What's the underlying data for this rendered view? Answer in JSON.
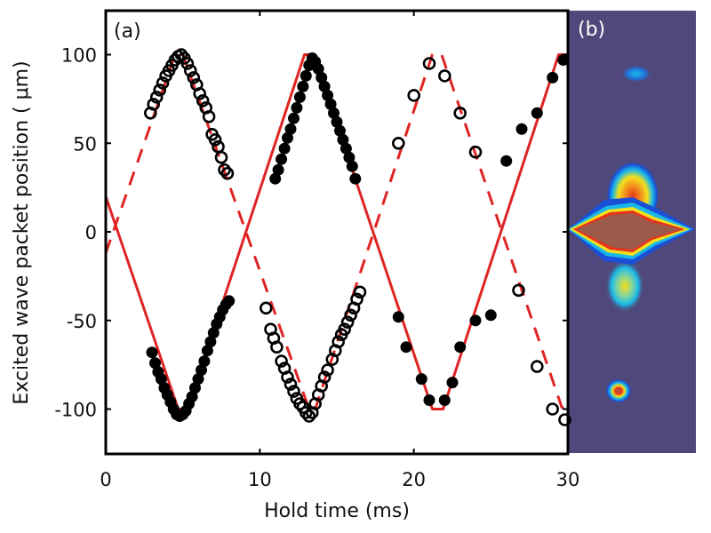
{
  "chart_data": [
    {
      "panel": "(a)",
      "type": "line",
      "xlabel": "Hold time (ms)",
      "ylabel": "Excited wave packet position (   μm)",
      "xlim": [
        0,
        30
      ],
      "ylim": [
        -126,
        125
      ],
      "xticks": [
        0,
        10,
        20,
        30
      ],
      "xtick_labels": [
        "0",
        "10",
        "20",
        "30"
      ],
      "yticks": [
        100,
        50,
        0,
        -50,
        -100
      ],
      "ytick_labels": [
        "100",
        "50",
        "0",
        "-50",
        "-100"
      ],
      "grid": false,
      "colors": {
        "fit": "#e02424",
        "data": "#000000",
        "axes": "#000000"
      },
      "series": [
        {
          "name": "fit-solid",
          "style": "solid",
          "x": [
            0,
            4.7,
            5.3,
            12.9,
            13.5,
            21.2,
            21.9,
            29.4,
            30
          ],
          "y": [
            20,
            -100,
            -100,
            100,
            100,
            -100,
            -100,
            100,
            100
          ]
        },
        {
          "name": "fit-dashed",
          "style": "dashed",
          "x": [
            0,
            4.5,
            5.0,
            13.2,
            13.6,
            21.2,
            21.8,
            29.6,
            30
          ],
          "y": [
            -12,
            100,
            100,
            -100,
            -100,
            100,
            100,
            -99,
            -100
          ]
        },
        {
          "name": "data-filled",
          "marker": "filled-circle",
          "x": [
            3.0,
            3.2,
            3.4,
            3.6,
            3.8,
            4.0,
            4.2,
            4.4,
            4.6,
            4.8,
            5.0,
            5.2,
            5.4,
            5.6,
            5.8,
            6.0,
            6.2,
            6.4,
            6.6,
            6.8,
            7.0,
            7.2,
            7.4,
            7.6,
            7.8,
            8.0,
            11.0,
            11.2,
            11.4,
            11.6,
            11.8,
            12.0,
            12.2,
            12.4,
            12.6,
            12.8,
            13.0,
            13.2,
            13.4,
            13.6,
            13.8,
            14.0,
            14.2,
            14.4,
            14.6,
            14.8,
            15.0,
            15.2,
            15.4,
            15.6,
            15.8,
            16.0,
            16.2,
            19.0,
            19.5,
            20.5,
            21.0,
            22.0,
            22.5,
            23.0,
            24.0,
            25.0,
            26.0,
            27.0,
            28.0,
            29.0,
            29.7
          ],
          "y": [
            -68,
            -74,
            -79,
            -83,
            -88,
            -92,
            -96,
            -100,
            -103,
            -104,
            -103,
            -101,
            -97,
            -93,
            -88,
            -83,
            -78,
            -73,
            -67,
            -62,
            -57,
            -52,
            -48,
            -44,
            -41,
            -39,
            30,
            35,
            41,
            47,
            53,
            58,
            64,
            70,
            76,
            82,
            88,
            94,
            98,
            96,
            92,
            87,
            82,
            77,
            72,
            67,
            62,
            57,
            52,
            47,
            42,
            37,
            30,
            -48,
            -65,
            -83,
            -95,
            -95,
            -85,
            -65,
            -50,
            -47,
            40,
            58,
            67,
            87,
            97
          ],
          "note": "approximate readings"
        },
        {
          "name": "data-open",
          "marker": "open-circle",
          "x": [
            2.9,
            3.1,
            3.3,
            3.5,
            3.7,
            3.9,
            4.1,
            4.3,
            4.5,
            4.7,
            4.9,
            5.1,
            5.3,
            5.5,
            5.7,
            5.9,
            6.1,
            6.3,
            6.5,
            6.7,
            6.9,
            7.1,
            7.3,
            7.5,
            7.7,
            7.9,
            10.4,
            10.7,
            10.9,
            11.1,
            11.4,
            11.6,
            11.8,
            12.0,
            12.2,
            12.4,
            12.6,
            12.8,
            13.0,
            13.2,
            13.4,
            13.6,
            13.8,
            14.0,
            14.2,
            14.4,
            14.7,
            14.9,
            15.1,
            15.3,
            15.5,
            15.7,
            15.9,
            16.1,
            16.3,
            16.5,
            19.0,
            20.0,
            21.0,
            22.0,
            23.0,
            24.0,
            26.8,
            28.0,
            29.0,
            29.8
          ],
          "y": [
            67,
            72,
            76,
            80,
            84,
            88,
            91,
            94,
            97,
            99,
            100,
            98,
            95,
            91,
            87,
            83,
            78,
            74,
            70,
            65,
            55,
            52,
            48,
            42,
            35,
            33,
            -43,
            -55,
            -60,
            -65,
            -73,
            -77,
            -82,
            -86,
            -90,
            -94,
            -97,
            -99,
            -102,
            -104,
            -102,
            -97,
            -92,
            -87,
            -82,
            -78,
            -72,
            -67,
            -62,
            -58,
            -55,
            -51,
            -47,
            -43,
            -38,
            -34,
            50,
            77,
            95,
            88,
            67,
            45,
            -33,
            -76,
            -100,
            -106
          ],
          "note": "approximate readings"
        }
      ]
    },
    {
      "panel": "(b)",
      "type": "heatmap",
      "description": "Absorption image: dense central cloud near 0 μm with side wings, upper faint cloud near +90 μm, lower compact cloud near -90 μm",
      "colors": {
        "background": "#50487a",
        "low": "#1a4fd8",
        "mid": "#19b8e8",
        "high": "#f2e01c",
        "peak": "#e8341c",
        "saturated": "#9c5a4a"
      },
      "features": [
        {
          "name": "top-cloud",
          "y": 90,
          "intensity": 0.35
        },
        {
          "name": "central-cloud",
          "y": 0,
          "intensity": 1.0
        },
        {
          "name": "lower-tail",
          "y": -38,
          "intensity": 0.55
        },
        {
          "name": "bottom-cloud",
          "y": -90,
          "intensity": 0.85
        }
      ]
    }
  ]
}
